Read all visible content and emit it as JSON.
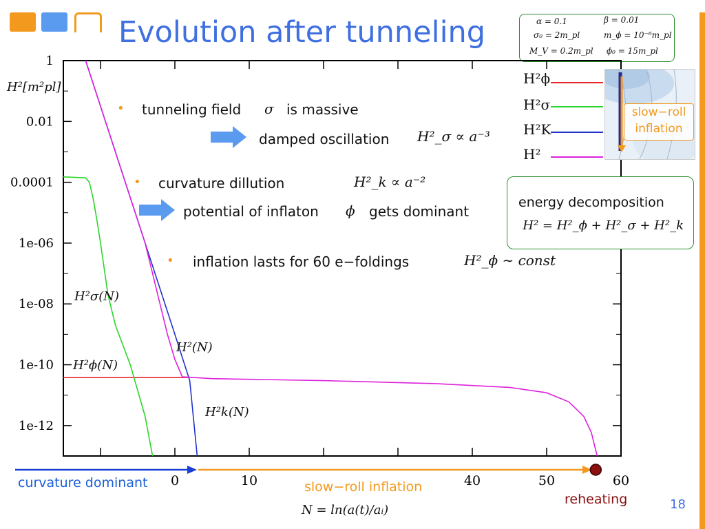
{
  "slide": {
    "title": "Evolution after tunneling",
    "page_number": "18"
  },
  "params": {
    "alpha": "α = 0.1",
    "beta": "β = 0.01",
    "sigma0": "σ₀ = 2m_pl",
    "mphi": "m_ϕ = 10⁻⁶m_pl",
    "mv": "M_V = 0.2m_pl",
    "phi0": "ϕ₀ = 15m_pl"
  },
  "bullets": {
    "b1": "tunneling field",
    "b1_symbol": "σ",
    "b1_tail": "is massive",
    "sub1": "damped oscillation",
    "sub1_math": "H²_σ ∝ a⁻³",
    "b2": "curvature dillution",
    "b2_math": "H²_k ∝ a⁻²",
    "sub2": "potential of inflaton",
    "sub2_symbol": "ϕ",
    "sub2_tail": "gets dominant",
    "b3": "inflation lasts for 60 e−foldings",
    "b3_math": "H²_ϕ ∼ const",
    "bullet_glyph": "•"
  },
  "energy_box": {
    "label": "energy decomposition",
    "formula": "H² = H²_ϕ + H²_σ + H²_k"
  },
  "inset": {
    "label_line1": "slow−roll",
    "label_line2": "inflation"
  },
  "legend": [
    {
      "label": "H²ϕ",
      "color": "#e8262a"
    },
    {
      "label": "H²σ",
      "color": "#2bd62b"
    },
    {
      "label": "H²K",
      "color": "#2233cc"
    },
    {
      "label": "H²",
      "color": "#dd22dd"
    }
  ],
  "annotations": {
    "h2_axis": "H²[m²pl]",
    "h2sigma": "H²σ(N)",
    "h2phi": "H²ϕ(N)",
    "h2": "H²(N)",
    "h2k": "H²k(N)",
    "curvature_dominant": "curvature dominant",
    "slow_roll": "slow−roll inflation",
    "reheating": "reheating",
    "xlabel": "N = ln(a(t)/aᵢ)"
  },
  "colors": {
    "title": "#3f6fe0",
    "accent_orange": "#f39a1e",
    "box_green": "#2e8b2e",
    "blue_text": "#1a5fd6",
    "reheating": "#8b1010",
    "arrow_blue": "#5b9bef"
  },
  "chart_data": {
    "type": "line",
    "log_y": true,
    "xlim": [
      -15,
      60
    ],
    "ylim": [
      1e-13,
      1
    ],
    "xticks": [
      0,
      10,
      40,
      50,
      60
    ],
    "xtick_labels": [
      "0",
      "10",
      "40",
      "50",
      "60"
    ],
    "yticks": [
      1,
      0.01,
      0.0001,
      1e-06,
      1e-08,
      1e-10,
      1e-12
    ],
    "ytick_labels": [
      "1",
      "0.01",
      "0.0001",
      "1e-06",
      "1e-08",
      "1e-10",
      "1e-12"
    ],
    "grid": false,
    "series": [
      {
        "name": "H²ϕ",
        "color": "#e8262a",
        "x": [
          -15,
          0,
          2
        ],
        "y": [
          3.8e-11,
          3.8e-11,
          3.8e-11
        ]
      },
      {
        "name": "H²σ",
        "color": "#2bd62b",
        "x": [
          -15,
          -12,
          -11.5,
          -11,
          -10.5,
          -10,
          -9,
          -8,
          -6,
          -4,
          -3
        ],
        "y": [
          0.00015,
          0.00014,
          0.0001,
          3e-05,
          6e-06,
          1e-06,
          2e-08,
          2e-09,
          1e-10,
          2e-12,
          1e-13
        ]
      },
      {
        "name": "H²K",
        "color": "#2233cc",
        "x": [
          -12,
          -8,
          -4,
          0,
          2,
          3
        ],
        "y": [
          1,
          0.001,
          1e-06,
          1e-09,
          3e-11,
          1e-13
        ]
      },
      {
        "name": "H²",
        "color": "#dd22dd",
        "x": [
          -12,
          -8,
          -4,
          -1,
          0,
          1,
          5,
          20,
          35,
          45,
          50,
          53,
          55,
          56,
          56.8
        ],
        "y": [
          1,
          0.001,
          1e-06,
          1e-09,
          1.5e-10,
          4e-11,
          3.5e-11,
          3e-11,
          2.4e-11,
          1.8e-11,
          1.2e-11,
          6e-12,
          2e-12,
          6e-13,
          1e-13
        ]
      }
    ]
  }
}
